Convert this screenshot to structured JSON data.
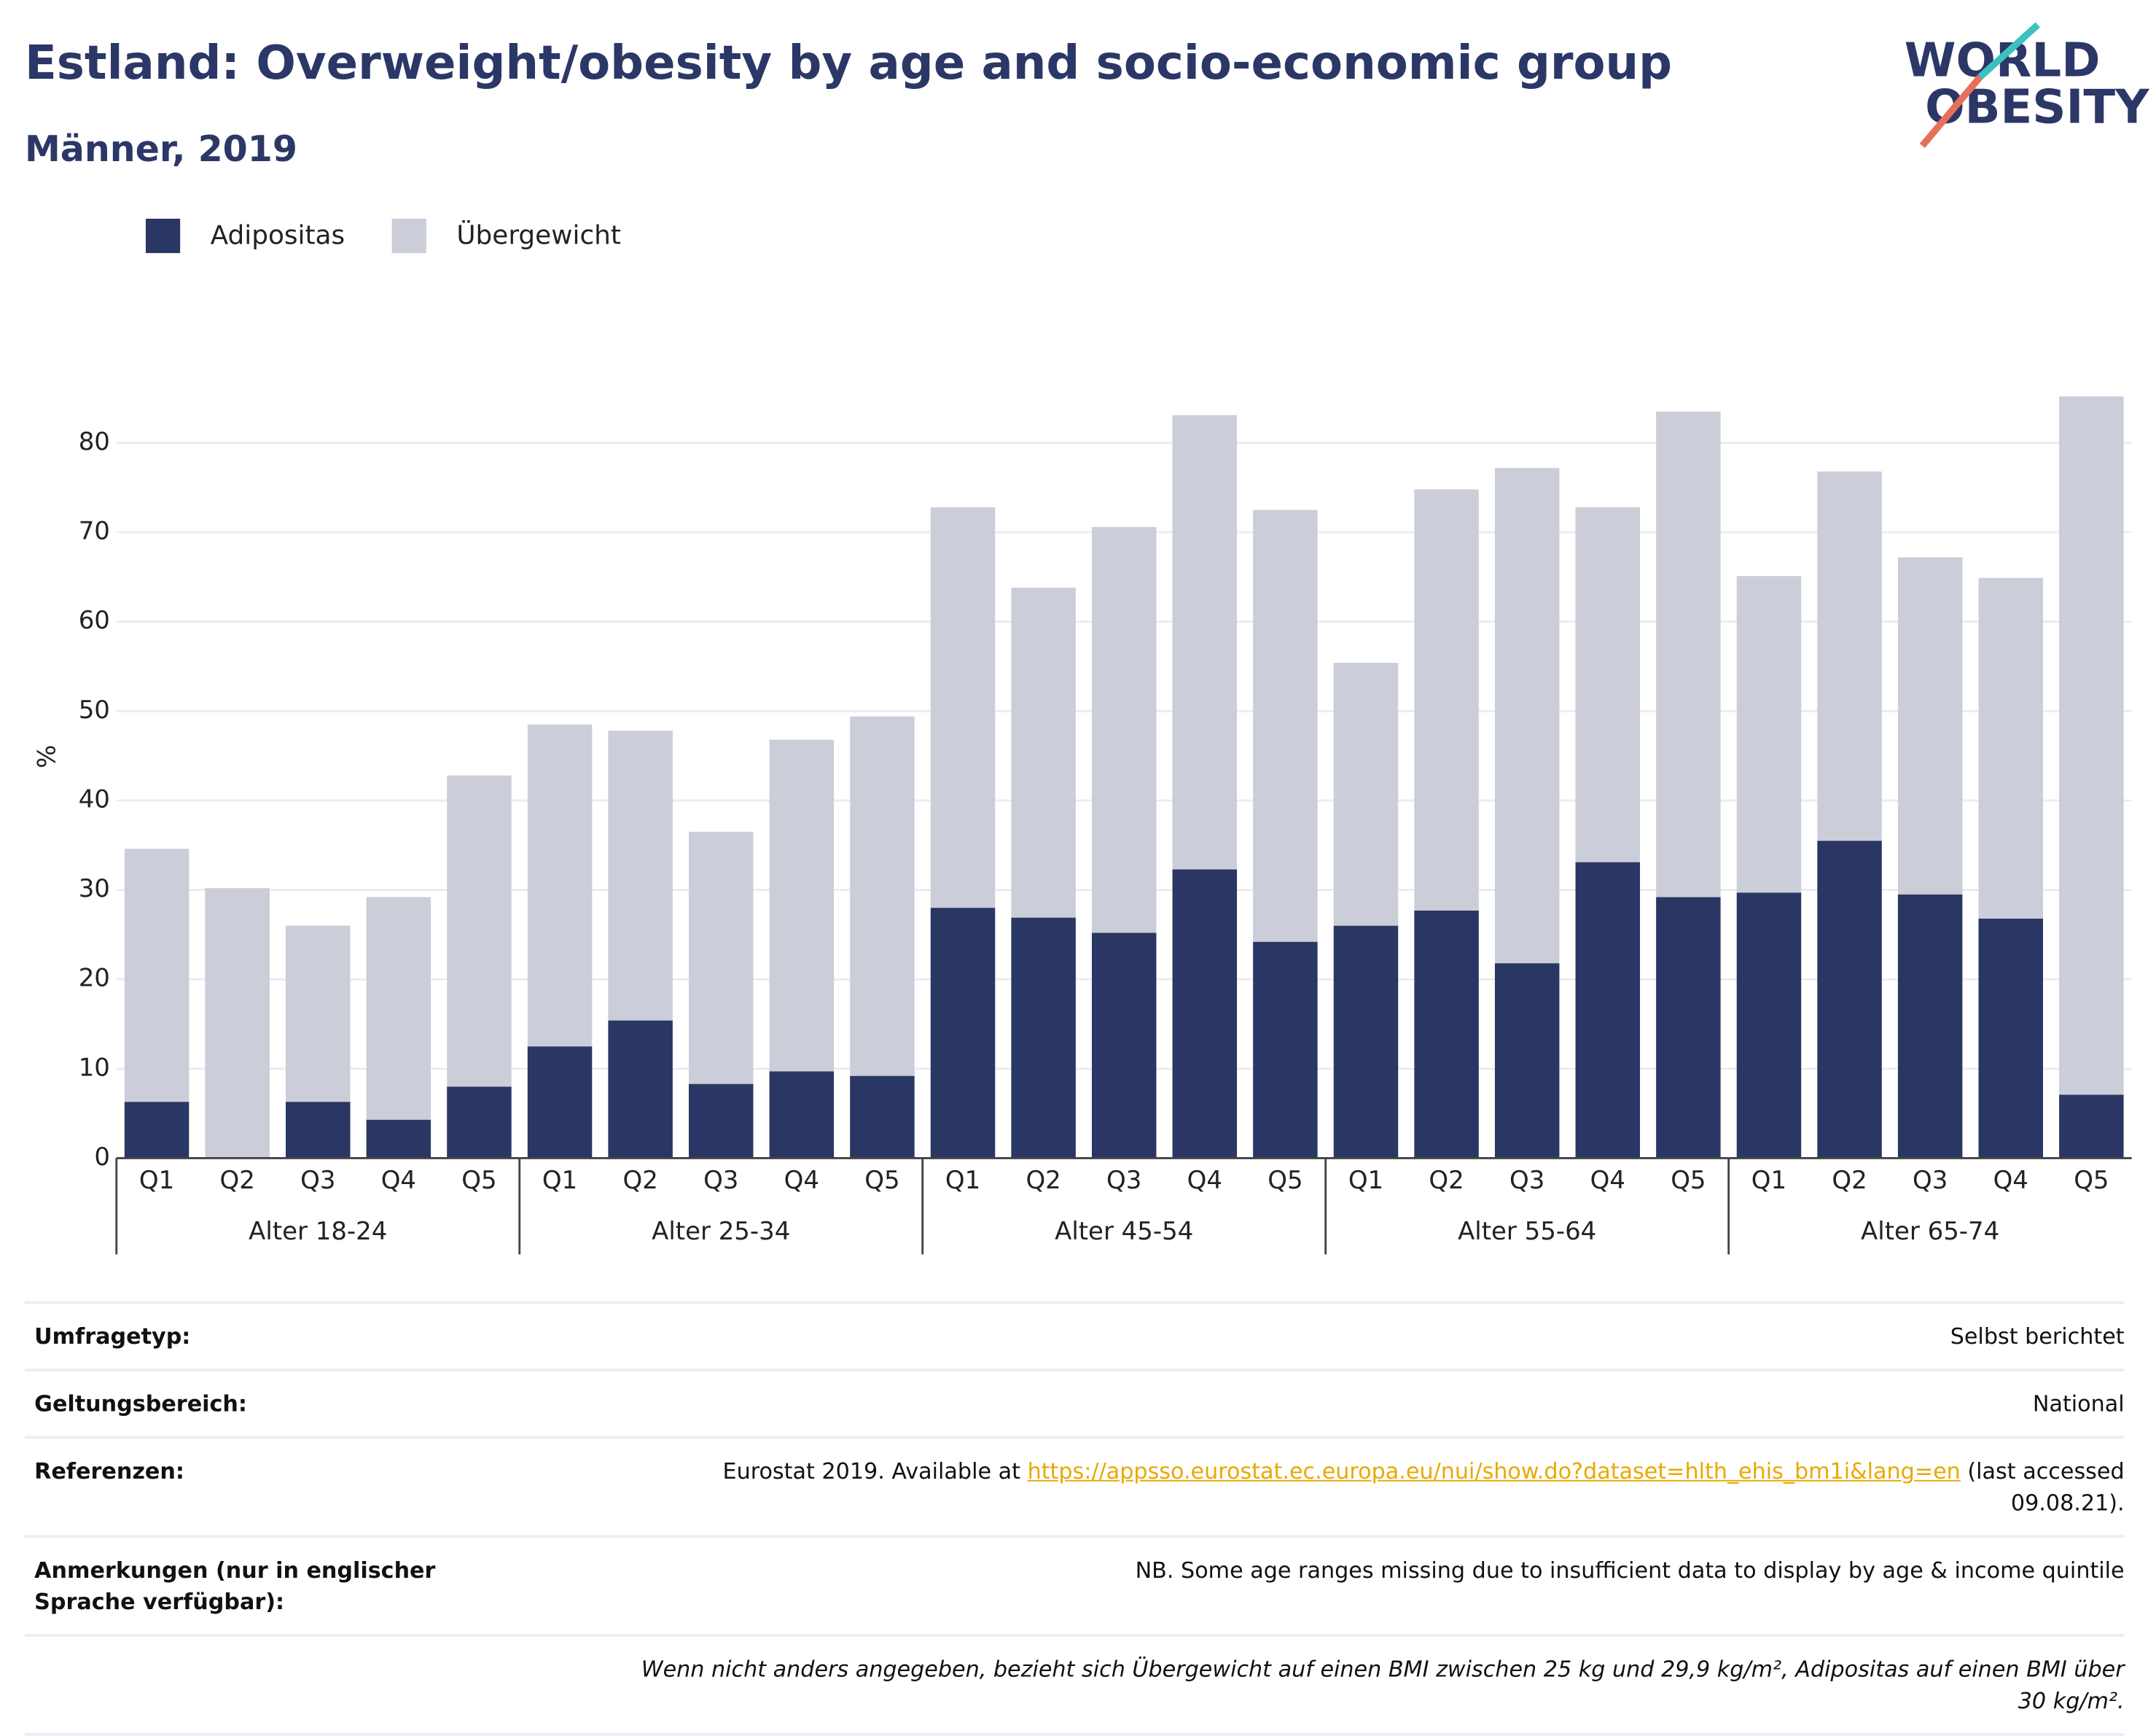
{
  "chart_data": {
    "type": "bar",
    "stacked": true,
    "title": "Estland: Overweight/obesity by age and socio-economic group",
    "subtitle": "Männer, 2019",
    "y_label": "%",
    "categories": [
      "Q1",
      "Q2",
      "Q3",
      "Q4",
      "Q5",
      "Q1",
      "Q2",
      "Q3",
      "Q4",
      "Q5",
      "Q1",
      "Q2",
      "Q3",
      "Q4",
      "Q5",
      "Q1",
      "Q2",
      "Q3",
      "Q4",
      "Q5",
      "Q1",
      "Q2",
      "Q3",
      "Q4",
      "Q5"
    ],
    "groups": [
      "Alter 18-24",
      "Alter 25-34",
      "Alter 45-54",
      "Alter 55-64",
      "Alter 65-74"
    ],
    "series": [
      {
        "name": "Adipositas",
        "color": "#2a3663",
        "values": [
          6.3,
          0,
          6.3,
          4.3,
          8.0,
          12.5,
          15.4,
          8.3,
          9.7,
          9.2,
          28.0,
          26.9,
          25.2,
          32.3,
          24.2,
          26.0,
          27.7,
          21.8,
          33.1,
          29.2,
          29.7,
          35.5,
          29.5,
          26.8,
          7.1
        ]
      },
      {
        "name": "Übergewicht",
        "color": "#cbcdd8",
        "values": [
          28.3,
          30.2,
          19.7,
          24.9,
          34.8,
          36.0,
          32.4,
          28.2,
          37.1,
          40.2,
          44.8,
          36.9,
          45.4,
          50.8,
          48.3,
          29.4,
          47.1,
          55.4,
          39.7,
          54.3,
          35.4,
          41.3,
          37.7,
          38.1,
          78.1
        ]
      }
    ],
    "ylim": [
      0,
      88
    ],
    "yticks": [
      0,
      10,
      20,
      30,
      40,
      50,
      60,
      70,
      80
    ],
    "grid": true,
    "legend": "top-left"
  },
  "logo": {
    "line1": "WORLD",
    "line2": "OBESITY"
  },
  "table": {
    "rows": [
      {
        "label": "Umfragetyp:",
        "value": "Selbst berichtet"
      },
      {
        "label": "Geltungsbereich:",
        "value": "National"
      },
      {
        "label": "Referenzen:",
        "value": {
          "before": "Eurostat 2019. Available at ",
          "link": "https://appsso.eurostat.ec.europa.eu/nui/show.do?dataset=hlth_ehis_bm1i&lang=en",
          "after": " (last accessed 09.08.21)."
        }
      },
      {
        "label": "Anmerkungen (nur in englischer Sprache verfügbar):",
        "value": "NB. Some age ranges missing due to insufficient data to display by age & income quintile"
      }
    ],
    "footnote": "Wenn nicht anders angegeben, bezieht sich Übergewicht auf einen BMI zwischen 25 kg und 29,9 kg/m², Adipositas auf einen BMI über 30 kg/m²."
  }
}
